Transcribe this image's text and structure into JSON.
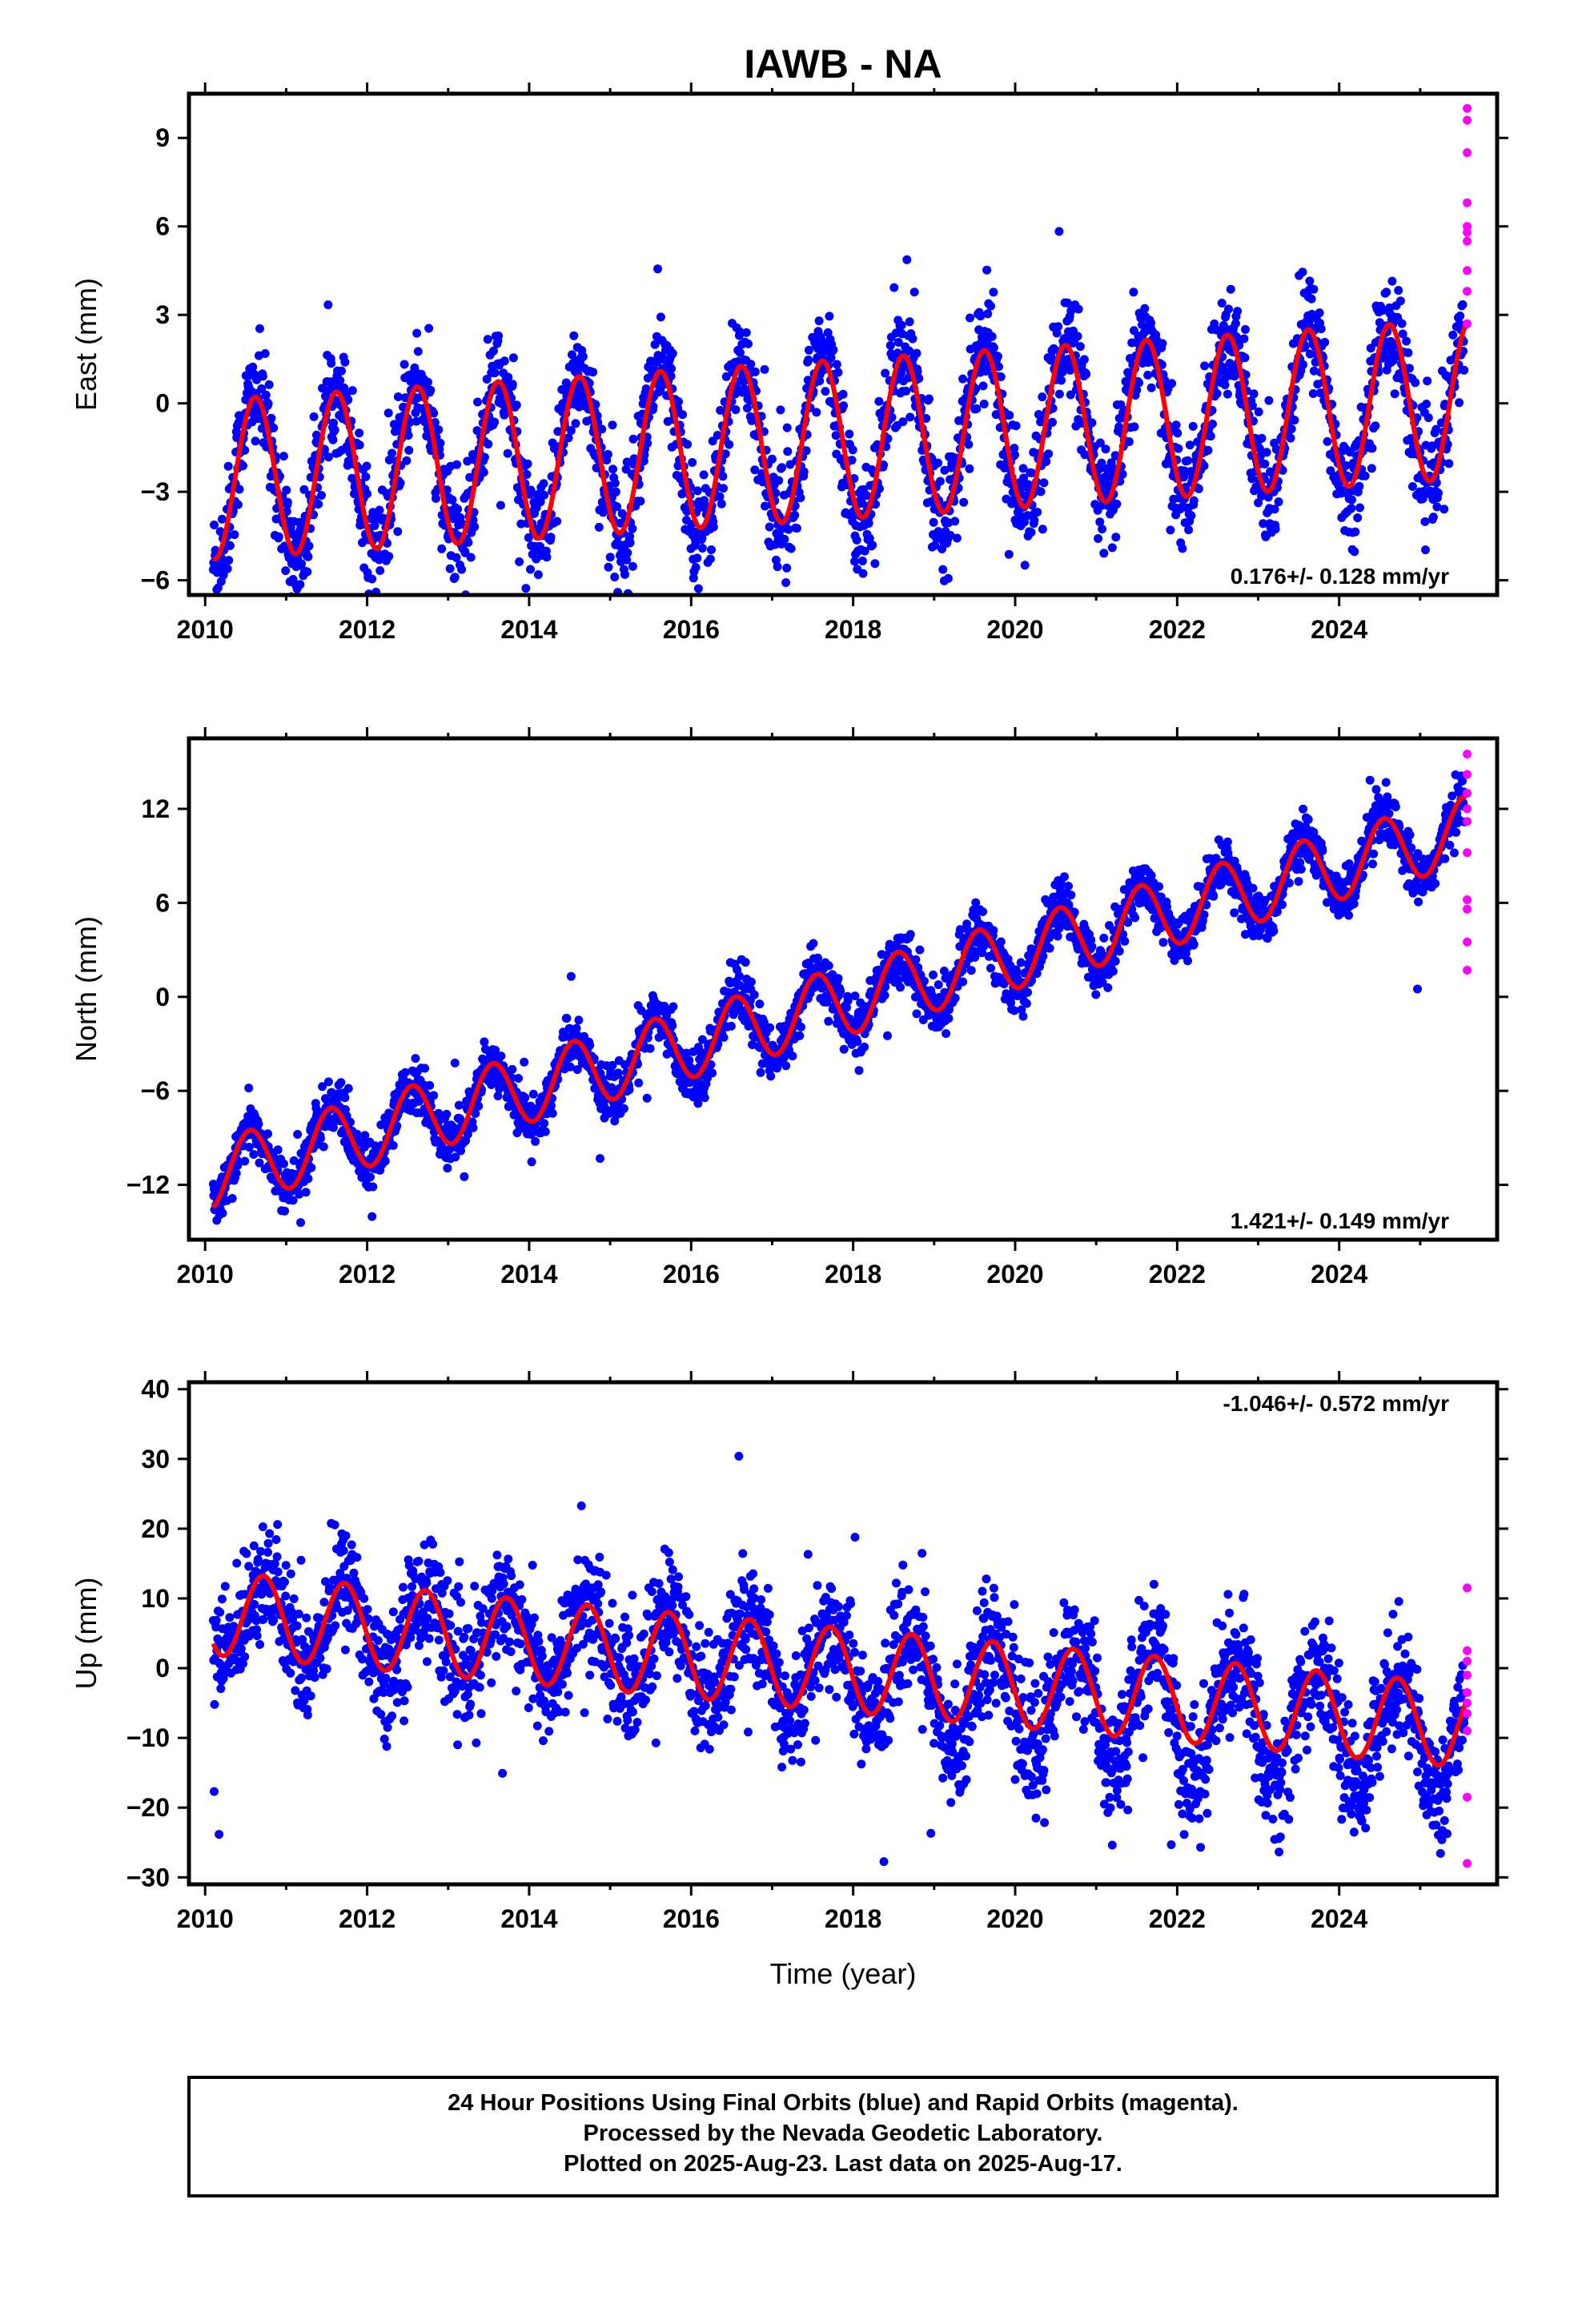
{
  "title": "IAWB - NA",
  "x_axis_label": "Time (year)",
  "caption": [
    "24 Hour Positions Using Final Orbits (blue) and Rapid Orbits (magenta).",
    "Processed by the Nevada Geodetic Laboratory.",
    "Plotted on 2025-Aug-23. Last data on 2025-Aug-17."
  ],
  "colors": {
    "final_orbits": "#0000ff",
    "rapid_orbits": "#ff00ff",
    "model_fit": "#ff0000",
    "frame": "#000000"
  },
  "chart_data": [
    {
      "type": "scatter",
      "panel": "east",
      "ylabel": "East (mm)",
      "rate_text": "0.176+/- 0.128 mm/yr",
      "rate_position": "bottom-right",
      "xlim": [
        2009.8,
        2025.95
      ],
      "ylim": [
        -6.5,
        10.5
      ],
      "x_ticks": [
        2010,
        2012,
        2014,
        2016,
        2018,
        2020,
        2022,
        2024
      ],
      "x_tick_labels": [
        "2010",
        "2012",
        "2014",
        "2016",
        "2018",
        "2020",
        "2022",
        "2024"
      ],
      "y_ticks": [
        -6,
        -3,
        0,
        3,
        6,
        9
      ],
      "y_tick_labels": [
        "−6",
        "−3",
        "0",
        "3",
        "6",
        "9"
      ],
      "grid": false,
      "series": [
        {
          "role": "final_orbits",
          "x_range": [
            2010.1,
            2025.55
          ],
          "trend": {
            "intercept_2010": -2.6,
            "slope_mm_per_yr": 0.176
          },
          "annual_amplitude": 2.8,
          "peak_phase_year_fraction": 0.62,
          "noise": 1.2
        },
        {
          "role": "rapid_orbits",
          "x": [
            2025.58,
            2025.58,
            2025.58,
            2025.58,
            2025.58,
            2025.58,
            2025.58,
            2025.58,
            2025.58,
            2025.58
          ],
          "y": [
            10.0,
            9.6,
            8.5,
            6.8,
            6.0,
            5.8,
            5.5,
            4.5,
            3.8,
            2.7
          ]
        },
        {
          "role": "model_fit",
          "x_range": [
            2010.1,
            2025.58
          ],
          "trend": {
            "intercept_2010": -2.6,
            "slope_mm_per_yr": 0.176
          },
          "annual_amplitude": 2.7,
          "peak_phase_year_fraction": 0.62
        }
      ]
    },
    {
      "type": "scatter",
      "panel": "north",
      "ylabel": "North (mm)",
      "rate_text": "1.421+/- 0.149 mm/yr",
      "rate_position": "bottom-right",
      "xlim": [
        2009.8,
        2025.95
      ],
      "ylim": [
        -15.5,
        16.5
      ],
      "x_ticks": [
        2010,
        2012,
        2014,
        2016,
        2018,
        2020,
        2022,
        2024
      ],
      "x_tick_labels": [
        "2010",
        "2012",
        "2014",
        "2016",
        "2018",
        "2020",
        "2022",
        "2024"
      ],
      "y_ticks": [
        -12,
        -6,
        0,
        6,
        12
      ],
      "y_tick_labels": [
        "−12",
        "−6",
        "0",
        "6",
        "12"
      ],
      "grid": false,
      "series": [
        {
          "role": "final_orbits",
          "x_range": [
            2010.1,
            2025.55
          ],
          "trend": {
            "intercept_2010": -11.5,
            "slope_mm_per_yr": 1.421
          },
          "annual_amplitude": 2.2,
          "peak_phase_year_fraction": 0.55,
          "noise": 1.1
        },
        {
          "role": "rapid_orbits",
          "x": [
            2025.58,
            2025.58,
            2025.58,
            2025.58,
            2025.58,
            2025.58,
            2025.58,
            2025.58,
            2025.58,
            2025.58
          ],
          "y": [
            15.5,
            14.2,
            13.0,
            12.0,
            11.2,
            9.2,
            6.2,
            5.6,
            3.5,
            1.7
          ]
        },
        {
          "role": "model_fit",
          "x_range": [
            2010.1,
            2025.58
          ],
          "trend": {
            "intercept_2010": -11.5,
            "slope_mm_per_yr": 1.421
          },
          "annual_amplitude": 2.2,
          "peak_phase_year_fraction": 0.55
        }
      ]
    },
    {
      "type": "scatter",
      "panel": "up",
      "ylabel": "Up (mm)",
      "rate_text": "-1.046+/- 0.572 mm/yr",
      "rate_position": "top-right",
      "xlim": [
        2009.8,
        2025.95
      ],
      "ylim": [
        -31,
        41
      ],
      "x_ticks": [
        2010,
        2012,
        2014,
        2016,
        2018,
        2020,
        2022,
        2024
      ],
      "x_tick_labels": [
        "2010",
        "2012",
        "2014",
        "2016",
        "2018",
        "2020",
        "2022",
        "2024"
      ],
      "y_ticks": [
        -30,
        -20,
        -10,
        0,
        10,
        20,
        30,
        40
      ],
      "y_tick_labels": [
        "−30",
        "−20",
        "−10",
        "0",
        "10",
        "20",
        "30",
        "40"
      ],
      "grid": false,
      "series": [
        {
          "role": "final_orbits",
          "x_range": [
            2010.1,
            2025.55
          ],
          "trend": {
            "intercept_2010": 8.0,
            "slope_mm_per_yr": -1.046
          },
          "annual_amplitude": 6.0,
          "peak_phase_year_fraction": 0.72,
          "noise": 5.5,
          "offset_after_2019": -5
        },
        {
          "role": "rapid_orbits",
          "x": [
            2025.58,
            2025.58,
            2025.58,
            2025.58,
            2025.58,
            2025.58,
            2025.58,
            2025.58,
            2025.58,
            2025.58
          ],
          "y": [
            11.5,
            2.5,
            1.0,
            -1.0,
            -3.5,
            -5.0,
            -6.5,
            -9.0,
            -18.5,
            -28.0
          ]
        },
        {
          "role": "model_fit",
          "x_range": [
            2010.1,
            2025.58
          ],
          "trend": {
            "intercept_2010": 8.0,
            "slope_mm_per_yr": -1.046
          },
          "annual_amplitude": 6.0,
          "peak_phase_year_fraction": 0.72
        }
      ]
    }
  ]
}
